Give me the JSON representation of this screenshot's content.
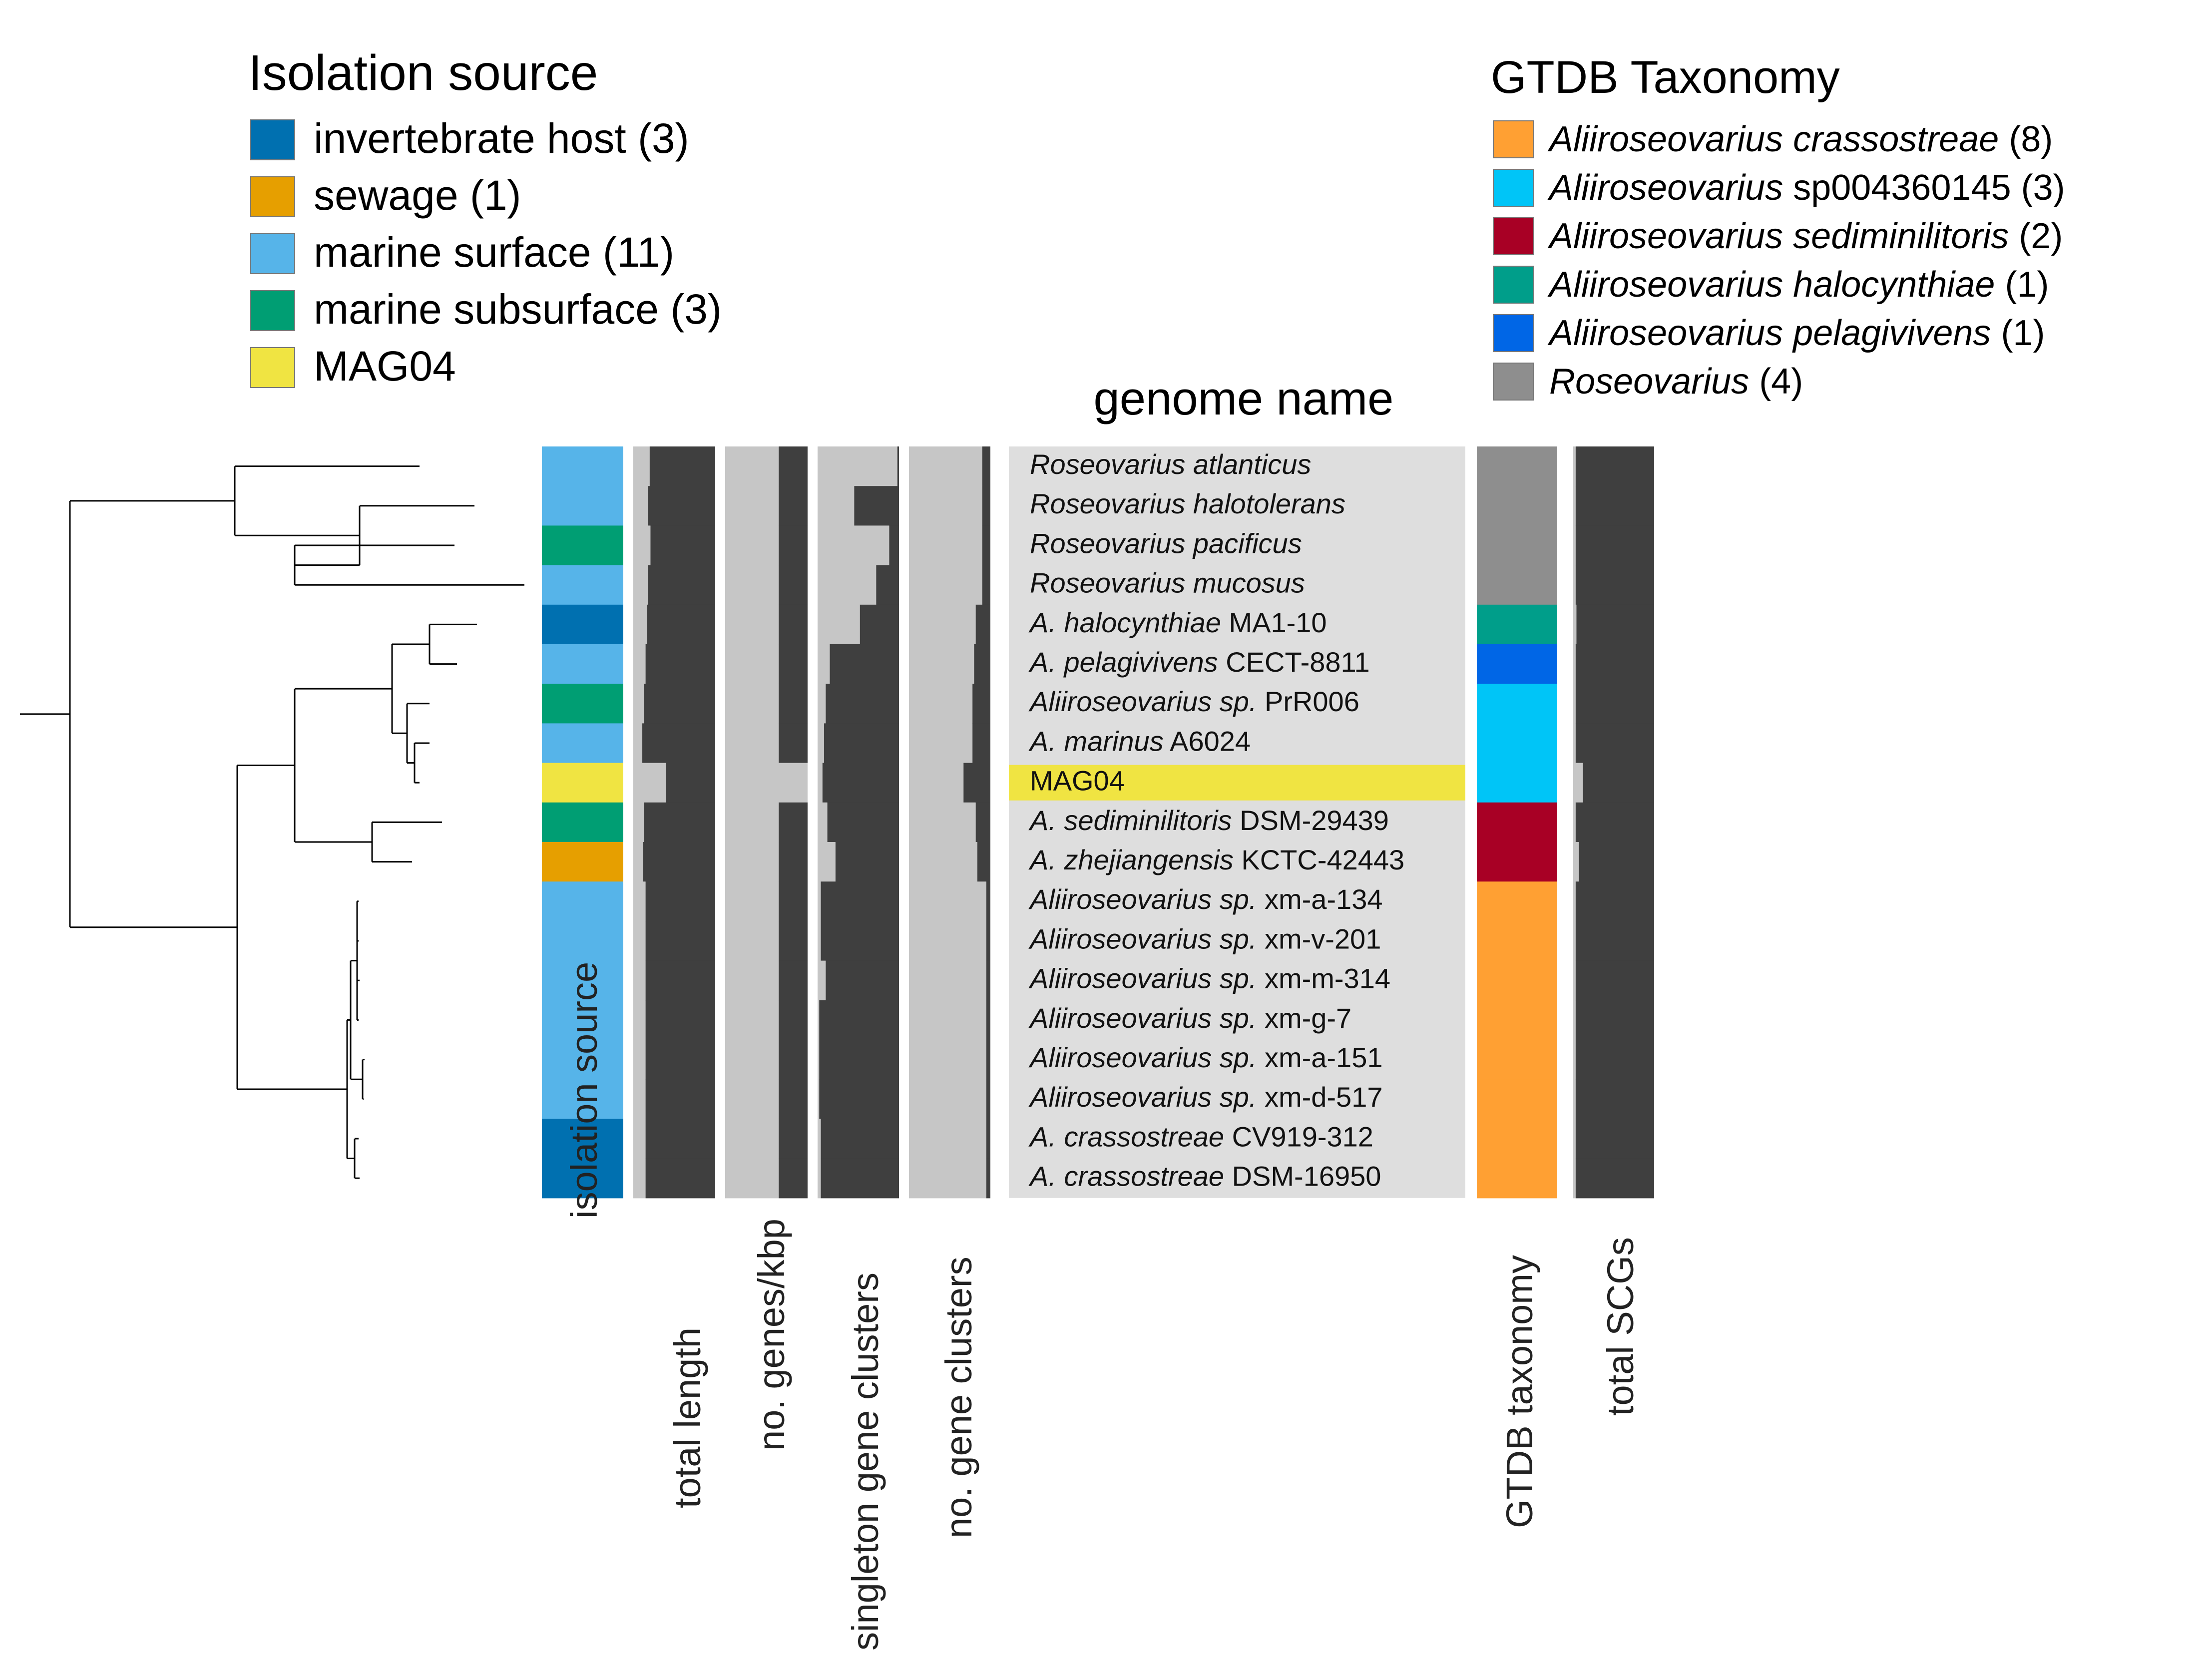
{
  "legends": {
    "isolation": {
      "title": "Isolation source",
      "items": [
        {
          "label": "invertebrate host (3)",
          "color": "#0070b0"
        },
        {
          "label": "sewage (1)",
          "color": "#e69f00"
        },
        {
          "label": "marine surface (11)",
          "color": "#56b4e9"
        },
        {
          "label": "marine subsurface (3)",
          "color": "#009e73"
        },
        {
          "label": "MAG04",
          "color": "#f0e442"
        }
      ]
    },
    "taxonomy": {
      "title": "GTDB Taxonomy",
      "items": [
        {
          "italic": "Aliiroseovarius crassostreae",
          "rest": " (8)",
          "color": "#ffa033"
        },
        {
          "italic": "Aliiroseovarius",
          "rest": " sp004360145 (3)",
          "color": "#00c5f7"
        },
        {
          "italic": "Aliiroseovarius sediminilitoris",
          "rest": " (2)",
          "color": "#a80025"
        },
        {
          "italic": "Aliiroseovarius halocynthiae",
          "rest": " (1)",
          "color": "#009e8a"
        },
        {
          "italic": "Aliiroseovarius pelagivivens",
          "rest": " (1)",
          "color": "#0066e6"
        },
        {
          "italic": "Roseovarius",
          "rest": " (4)",
          "color": "#8e8e8e"
        }
      ]
    }
  },
  "genome_name_header": "genome name",
  "layer_labels": {
    "isolation": "isolation source",
    "total_length": "total length",
    "genes_per_kbp": "no. genes/kbp",
    "singletons": "singleton gene clusters",
    "gene_clusters": "no. gene clusters",
    "gtdb": "GTDB taxonomy",
    "scgs": "total SCGs"
  },
  "colors": {
    "bar_dark": "#3f3f3f",
    "bar_light": "#c6c6c6",
    "name_background": "#dedede",
    "highlight": "#f0e442"
  },
  "genomes": [
    {
      "italic": "Roseovarius atlanticus",
      "rest": "",
      "isolation": 2,
      "gtdb": 5,
      "total_length": 0.2,
      "genes_per_kbp": 0.65,
      "singletons": 0.98,
      "gene_clusters": 0.9,
      "scgs": 0.03
    },
    {
      "italic": "Roseovarius halotolerans",
      "rest": "",
      "isolation": 2,
      "gtdb": 5,
      "total_length": 0.18,
      "genes_per_kbp": 0.65,
      "singletons": 0.45,
      "gene_clusters": 0.9,
      "scgs": 0.03
    },
    {
      "italic": "Roseovarius pacificus",
      "rest": "",
      "isolation": 3,
      "gtdb": 5,
      "total_length": 0.21,
      "genes_per_kbp": 0.65,
      "singletons": 0.88,
      "gene_clusters": 0.9,
      "scgs": 0.03
    },
    {
      "italic": "Roseovarius mucosus",
      "rest": "",
      "isolation": 2,
      "gtdb": 5,
      "total_length": 0.18,
      "genes_per_kbp": 0.65,
      "singletons": 0.72,
      "gene_clusters": 0.9,
      "scgs": 0.03
    },
    {
      "italic": "A. halocynthiae",
      "rest": " MA1-10",
      "isolation": 0,
      "gtdb": 3,
      "total_length": 0.17,
      "genes_per_kbp": 0.65,
      "singletons": 0.52,
      "gene_clusters": 0.82,
      "scgs": 0.04
    },
    {
      "italic": "A. pelagivivens",
      "rest": " CECT-8811",
      "isolation": 2,
      "gtdb": 4,
      "total_length": 0.15,
      "genes_per_kbp": 0.65,
      "singletons": 0.15,
      "gene_clusters": 0.8,
      "scgs": 0.03
    },
    {
      "italic": "Aliiroseovarius sp.",
      "rest": " PrR006",
      "isolation": 3,
      "gtdb": 1,
      "total_length": 0.13,
      "genes_per_kbp": 0.65,
      "singletons": 0.1,
      "gene_clusters": 0.78,
      "scgs": 0.03
    },
    {
      "italic": "A. marinus",
      "rest": " A6024",
      "isolation": 2,
      "gtdb": 1,
      "total_length": 0.11,
      "genes_per_kbp": 0.65,
      "singletons": 0.08,
      "gene_clusters": 0.78,
      "scgs": 0.03
    },
    {
      "italic": "",
      "rest": "MAG04",
      "isolation": 4,
      "gtdb": 1,
      "total_length": 0.4,
      "genes_per_kbp": 1.0,
      "singletons": 0.06,
      "gene_clusters": 0.67,
      "scgs": 0.12
    },
    {
      "italic": "A. sediminilitoris",
      "rest": " DSM-29439",
      "isolation": 3,
      "gtdb": 2,
      "total_length": 0.13,
      "genes_per_kbp": 0.65,
      "singletons": 0.12,
      "gene_clusters": 0.82,
      "scgs": 0.03
    },
    {
      "italic": "A. zhejiangensis",
      "rest": " KCTC-42443",
      "isolation": 1,
      "gtdb": 2,
      "total_length": 0.12,
      "genes_per_kbp": 0.65,
      "singletons": 0.22,
      "gene_clusters": 0.84,
      "scgs": 0.07
    },
    {
      "italic": "Aliiroseovarius sp.",
      "rest": " xm-a-134",
      "isolation": 2,
      "gtdb": 0,
      "total_length": 0.15,
      "genes_per_kbp": 0.65,
      "singletons": 0.04,
      "gene_clusters": 0.95,
      "scgs": 0.03
    },
    {
      "italic": "Aliiroseovarius sp.",
      "rest": " xm-v-201",
      "isolation": 2,
      "gtdb": 0,
      "total_length": 0.15,
      "genes_per_kbp": 0.65,
      "singletons": 0.04,
      "gene_clusters": 0.95,
      "scgs": 0.03
    },
    {
      "italic": "Aliiroseovarius sp.",
      "rest": " xm-m-314",
      "isolation": 2,
      "gtdb": 0,
      "total_length": 0.15,
      "genes_per_kbp": 0.65,
      "singletons": 0.1,
      "gene_clusters": 0.95,
      "scgs": 0.03
    },
    {
      "italic": "Aliiroseovarius sp.",
      "rest": " xm-g-7",
      "isolation": 2,
      "gtdb": 0,
      "total_length": 0.15,
      "genes_per_kbp": 0.65,
      "singletons": 0.02,
      "gene_clusters": 0.95,
      "scgs": 0.03
    },
    {
      "italic": "Aliiroseovarius sp.",
      "rest": " xm-a-151",
      "isolation": 2,
      "gtdb": 0,
      "total_length": 0.15,
      "genes_per_kbp": 0.65,
      "singletons": 0.02,
      "gene_clusters": 0.95,
      "scgs": 0.03
    },
    {
      "italic": "Aliiroseovarius sp.",
      "rest": " xm-d-517",
      "isolation": 2,
      "gtdb": 0,
      "total_length": 0.15,
      "genes_per_kbp": 0.65,
      "singletons": 0.02,
      "gene_clusters": 0.95,
      "scgs": 0.03
    },
    {
      "italic": "A. crassostreae",
      "rest": " CV919-312",
      "isolation": 0,
      "gtdb": 0,
      "total_length": 0.15,
      "genes_per_kbp": 0.65,
      "singletons": 0.04,
      "gene_clusters": 0.95,
      "scgs": 0.03
    },
    {
      "italic": "A. crassostreae",
      "rest": " DSM-16950",
      "isolation": 0,
      "gtdb": 0,
      "total_length": 0.15,
      "genes_per_kbp": 0.65,
      "singletons": 0.04,
      "gene_clusters": 0.95,
      "scgs": 0.03
    }
  ]
}
